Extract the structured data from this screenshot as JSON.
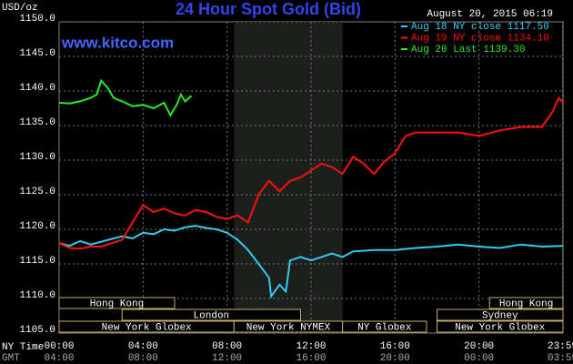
{
  "chart_data": {
    "type": "line",
    "title": "24 Hour Spot Gold (Bid)",
    "timestamp": "August 20, 2015 06:19",
    "y_label": "USD/oz",
    "watermark": "www.kitco.com",
    "x_label": "NY Time",
    "x2_label": "GMT",
    "xlim": [
      0,
      24
    ],
    "ylim": [
      1105,
      1150
    ],
    "grid": true,
    "yticks": [
      {
        "value": 1105,
        "label": "1105.0"
      },
      {
        "value": 1110,
        "label": "1110.0"
      },
      {
        "value": 1115,
        "label": "1115.0"
      },
      {
        "value": 1120,
        "label": "1120.0"
      },
      {
        "value": 1125,
        "label": "1125.0"
      },
      {
        "value": 1130,
        "label": "1130.0"
      },
      {
        "value": 1135,
        "label": "1135.0"
      },
      {
        "value": 1140,
        "label": "1140.0"
      },
      {
        "value": 1145,
        "label": "1145.0"
      },
      {
        "value": 1150,
        "label": "1150.0"
      }
    ],
    "xticks": [
      {
        "value": 0,
        "label": "00:00"
      },
      {
        "value": 4,
        "label": "04:00"
      },
      {
        "value": 8,
        "label": "08:00"
      },
      {
        "value": 12,
        "label": "12:00"
      },
      {
        "value": 16,
        "label": "16:00"
      },
      {
        "value": 20,
        "label": "20:00"
      },
      {
        "value": 23.98,
        "label": "23:59"
      }
    ],
    "x2ticks": [
      {
        "value": 0,
        "label": "04:00"
      },
      {
        "value": 4,
        "label": "08:00"
      },
      {
        "value": 8,
        "label": "12:00"
      },
      {
        "value": 12,
        "label": "16:00"
      },
      {
        "value": 16,
        "label": "20:00"
      },
      {
        "value": 20,
        "label": "00:00"
      },
      {
        "value": 23.98,
        "label": "03:59"
      }
    ],
    "highlight": [
      8.33,
      13.5
    ],
    "sessions": [
      [
        {
          "label": "Hong Kong",
          "start": 0,
          "end": 5.5
        },
        {
          "label": "Hong Kong",
          "start": 20.5,
          "end": 24
        }
      ],
      [
        {
          "label": "London",
          "start": 3,
          "end": 11.5
        },
        {
          "label": "Sydney",
          "start": 18,
          "end": 24
        }
      ],
      [
        {
          "label": "New York Globex",
          "start": 0,
          "end": 8.33
        },
        {
          "label": "New York NYMEX",
          "start": 8.33,
          "end": 13.5
        },
        {
          "label": "NY Globex",
          "start": 13.5,
          "end": 17.5
        },
        {
          "label": "New York Globex",
          "start": 18,
          "end": 24
        }
      ]
    ],
    "series": [
      {
        "name": "Aug 18 NY close 1117.50",
        "color": "#33ccee",
        "x": [
          0,
          0.5,
          1,
          1.5,
          2,
          2.5,
          3,
          3.5,
          4,
          4.5,
          5,
          5.5,
          6,
          6.5,
          7,
          7.5,
          8,
          8.5,
          9,
          9.5,
          10,
          10.1,
          10.5,
          10.8,
          11,
          11.5,
          12,
          12.5,
          13,
          13.5,
          14,
          15,
          16,
          17,
          18,
          19,
          20,
          21,
          22,
          23,
          24
        ],
        "values": [
          1118,
          1117.6,
          1118.3,
          1117.8,
          1118.2,
          1118.6,
          1119,
          1118.7,
          1119.5,
          1119.3,
          1120,
          1119.8,
          1120.3,
          1120.5,
          1120.2,
          1120,
          1119.5,
          1118.5,
          1117,
          1115,
          1113,
          1110.3,
          1112,
          1111,
          1115.5,
          1116,
          1115.5,
          1116,
          1116.5,
          1116,
          1116.8,
          1117,
          1117,
          1117.3,
          1117.5,
          1117.8,
          1117.5,
          1117.3,
          1117.8,
          1117.5,
          1117.6
        ]
      },
      {
        "name": "Aug 19 NY close 1134.10",
        "color": "#ff1010",
        "x": [
          0,
          0.5,
          1,
          1.5,
          2,
          2.5,
          3,
          3.5,
          4,
          4.5,
          5,
          5.5,
          6,
          6.5,
          7,
          7.5,
          8,
          8.5,
          9,
          9.5,
          10,
          10.5,
          11,
          11.5,
          12,
          12.5,
          13,
          13.5,
          14,
          14.5,
          15,
          15.5,
          16,
          16.5,
          17,
          18,
          19,
          20,
          21,
          22,
          23,
          23.5,
          23.8,
          24
        ],
        "values": [
          1118,
          1117.3,
          1117.2,
          1117.5,
          1117.5,
          1118,
          1118.5,
          1121,
          1123.5,
          1122.5,
          1123,
          1122.3,
          1122,
          1122.8,
          1122.5,
          1121.8,
          1121.5,
          1122,
          1121,
          1125,
          1127,
          1125.5,
          1127,
          1127.5,
          1128.5,
          1129.5,
          1129,
          1128,
          1130.5,
          1129.5,
          1128,
          1129.8,
          1131,
          1133.5,
          1134,
          1134,
          1134,
          1133.5,
          1134.3,
          1134.8,
          1134.8,
          1137,
          1139,
          1138.3
        ]
      },
      {
        "name": "Aug 20 Last 1139.30",
        "color": "#22ee22",
        "x": [
          0,
          0.5,
          1,
          1.5,
          1.8,
          2,
          2.3,
          2.6,
          3,
          3.5,
          4,
          4.5,
          5,
          5.3,
          5.6,
          5.8,
          6,
          6.3
        ],
        "values": [
          1138.3,
          1138.2,
          1138.5,
          1139,
          1139.5,
          1141.5,
          1140.5,
          1139,
          1138.5,
          1137.8,
          1138,
          1137.5,
          1138.3,
          1136.5,
          1138,
          1139.5,
          1138.5,
          1139.3
        ]
      }
    ]
  }
}
